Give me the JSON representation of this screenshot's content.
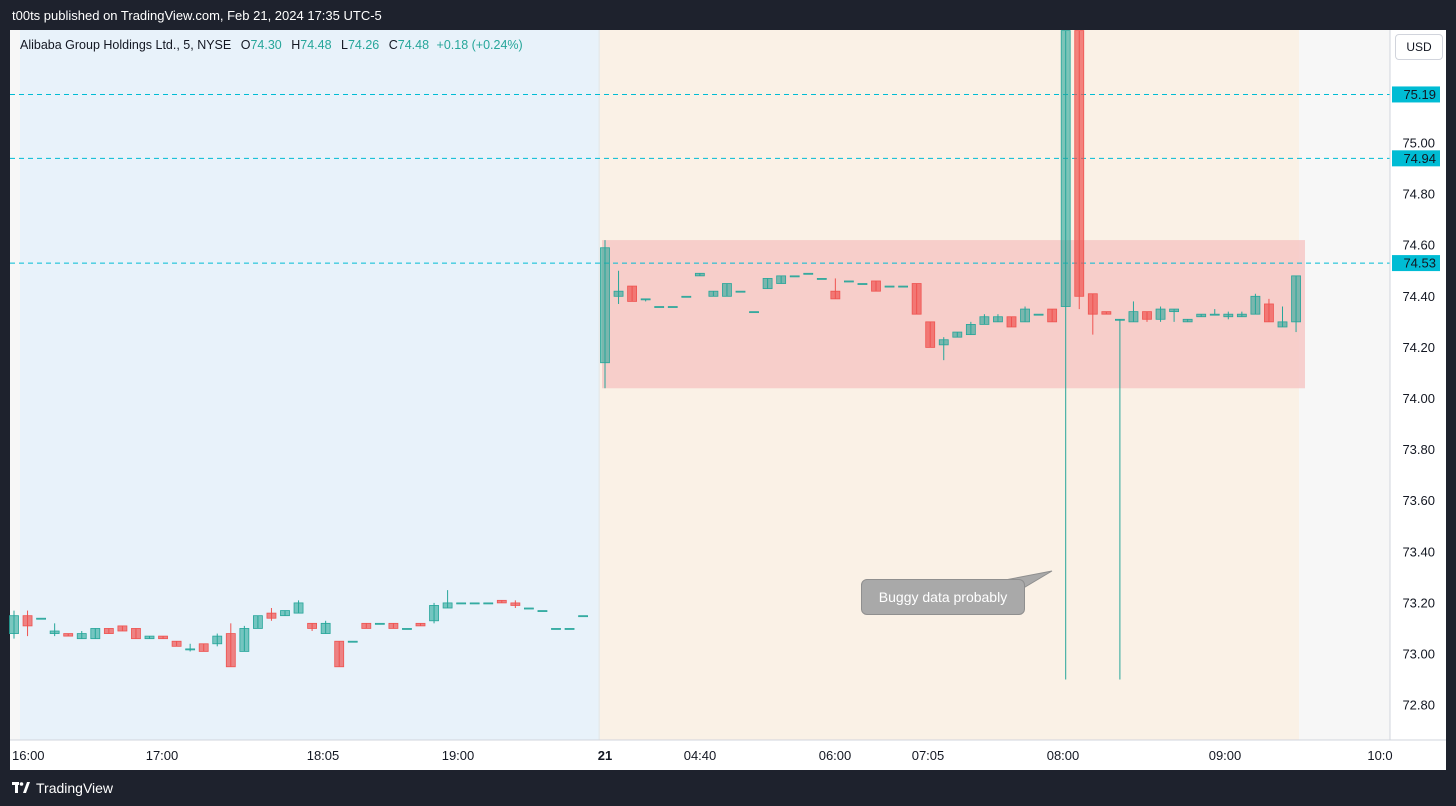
{
  "header": {
    "published": "t00ts published on TradingView.com, Feb 21, 2024 17:35 UTC-5"
  },
  "footer": {
    "brand": "TradingView"
  },
  "legend": {
    "symbol": "Alibaba Group Holdings Ltd., 5, NYSE",
    "o_label": "O",
    "o_value": "74.30",
    "h_label": "H",
    "h_value": "74.48",
    "l_label": "L",
    "l_value": "74.26",
    "c_label": "C",
    "c_value": "74.48",
    "change": "+0.18 (+0.24%)"
  },
  "currency_button": "USD",
  "annotation": {
    "text": "Buggy data probably"
  },
  "colors": {
    "up": "#26a69a",
    "down": "#ef5350",
    "line": "#00bcd4",
    "zone": "#f5c2c0",
    "pre_bg": "#e8f2fa",
    "post_bg": "#faf1e6"
  },
  "chart_data": {
    "type": "candlestick",
    "title": "Alibaba Group Holdings Ltd., 5, NYSE",
    "currency": "USD",
    "ylim": [
      72.67,
      75.44
    ],
    "y_ticks": [
      72.8,
      73.0,
      73.2,
      73.4,
      73.6,
      73.8,
      74.0,
      74.2,
      74.4,
      74.6,
      74.8,
      75.0
    ],
    "x_ticks": [
      "16:00",
      "17:00",
      "18:05",
      "19:00",
      "21",
      "04:40",
      "06:00",
      "07:05",
      "08:00",
      "09:00",
      "10:0"
    ],
    "horizontal_levels": [
      75.19,
      74.94,
      74.53
    ],
    "zone": {
      "top": 74.62,
      "bottom": 74.04
    },
    "sessions": {
      "after_hours_end": "21",
      "premarket_end": "09:30"
    },
    "candles": [
      {
        "o": 73.08,
        "h": 73.17,
        "l": 73.06,
        "c": 73.15
      },
      {
        "o": 73.15,
        "h": 73.17,
        "l": 73.07,
        "c": 73.11
      },
      {
        "o": 73.14,
        "h": 73.14,
        "l": 73.14,
        "c": 73.14
      },
      {
        "o": 73.08,
        "h": 73.12,
        "l": 73.07,
        "c": 73.09
      },
      {
        "o": 73.08,
        "h": 73.08,
        "l": 73.07,
        "c": 73.07
      },
      {
        "o": 73.06,
        "h": 73.09,
        "l": 73.06,
        "c": 73.08
      },
      {
        "o": 73.06,
        "h": 73.1,
        "l": 73.06,
        "c": 73.1
      },
      {
        "o": 73.1,
        "h": 73.1,
        "l": 73.08,
        "c": 73.08
      },
      {
        "o": 73.11,
        "h": 73.11,
        "l": 73.09,
        "c": 73.09
      },
      {
        "o": 73.1,
        "h": 73.1,
        "l": 73.06,
        "c": 73.06
      },
      {
        "o": 73.06,
        "h": 73.07,
        "l": 73.06,
        "c": 73.07
      },
      {
        "o": 73.07,
        "h": 73.07,
        "l": 73.06,
        "c": 73.06
      },
      {
        "o": 73.05,
        "h": 73.05,
        "l": 73.03,
        "c": 73.03
      },
      {
        "o": 73.02,
        "h": 73.04,
        "l": 73.01,
        "c": 73.02
      },
      {
        "o": 73.04,
        "h": 73.04,
        "l": 73.01,
        "c": 73.01
      },
      {
        "o": 73.04,
        "h": 73.08,
        "l": 73.03,
        "c": 73.07
      },
      {
        "o": 73.08,
        "h": 73.12,
        "l": 72.95,
        "c": 72.95
      },
      {
        "o": 73.01,
        "h": 73.11,
        "l": 73.01,
        "c": 73.1
      },
      {
        "o": 73.1,
        "h": 73.15,
        "l": 73.1,
        "c": 73.15
      },
      {
        "o": 73.16,
        "h": 73.18,
        "l": 73.13,
        "c": 73.14
      },
      {
        "o": 73.15,
        "h": 73.17,
        "l": 73.15,
        "c": 73.17
      },
      {
        "o": 73.16,
        "h": 73.21,
        "l": 73.16,
        "c": 73.2
      },
      {
        "o": 73.12,
        "h": 73.12,
        "l": 73.09,
        "c": 73.1
      },
      {
        "o": 73.08,
        "h": 73.13,
        "l": 73.08,
        "c": 73.12
      },
      {
        "o": 73.05,
        "h": 73.05,
        "l": 72.95,
        "c": 72.95
      },
      {
        "o": 73.05,
        "h": 73.05,
        "l": 73.05,
        "c": 73.05
      },
      {
        "o": 73.12,
        "h": 73.12,
        "l": 73.1,
        "c": 73.1
      },
      {
        "o": 73.12,
        "h": 73.12,
        "l": 73.12,
        "c": 73.12
      },
      {
        "o": 73.12,
        "h": 73.12,
        "l": 73.1,
        "c": 73.1
      },
      {
        "o": 73.1,
        "h": 73.1,
        "l": 73.1,
        "c": 73.1
      },
      {
        "o": 73.12,
        "h": 73.12,
        "l": 73.11,
        "c": 73.11
      },
      {
        "o": 73.13,
        "h": 73.2,
        "l": 73.12,
        "c": 73.19
      },
      {
        "o": 73.18,
        "h": 73.25,
        "l": 73.18,
        "c": 73.2
      },
      {
        "o": 73.2,
        "h": 73.2,
        "l": 73.2,
        "c": 73.2
      },
      {
        "o": 73.2,
        "h": 73.2,
        "l": 73.2,
        "c": 73.2
      },
      {
        "o": 73.2,
        "h": 73.2,
        "l": 73.2,
        "c": 73.2
      },
      {
        "o": 73.21,
        "h": 73.21,
        "l": 73.2,
        "c": 73.2
      },
      {
        "o": 73.2,
        "h": 73.21,
        "l": 73.18,
        "c": 73.19
      },
      {
        "o": 73.18,
        "h": 73.18,
        "l": 73.18,
        "c": 73.18
      },
      {
        "o": 73.17,
        "h": 73.17,
        "l": 73.17,
        "c": 73.17
      },
      {
        "o": 73.1,
        "h": 73.1,
        "l": 73.1,
        "c": 73.1
      },
      {
        "o": 73.1,
        "h": 73.1,
        "l": 73.1,
        "c": 73.1
      },
      {
        "o": 73.15,
        "h": 73.15,
        "l": 73.15,
        "c": 73.15
      },
      {
        "o": 74.14,
        "h": 74.62,
        "l": 74.04,
        "c": 74.59
      },
      {
        "o": 74.4,
        "h": 74.5,
        "l": 74.37,
        "c": 74.42
      },
      {
        "o": 74.44,
        "h": 74.44,
        "l": 74.38,
        "c": 74.38
      },
      {
        "o": 74.39,
        "h": 74.39,
        "l": 74.38,
        "c": 74.39
      },
      {
        "o": 74.36,
        "h": 74.36,
        "l": 74.36,
        "c": 74.36
      },
      {
        "o": 74.36,
        "h": 74.36,
        "l": 74.36,
        "c": 74.36
      },
      {
        "o": 74.4,
        "h": 74.4,
        "l": 74.4,
        "c": 74.4
      },
      {
        "o": 74.48,
        "h": 74.49,
        "l": 74.48,
        "c": 74.49
      },
      {
        "o": 74.4,
        "h": 74.42,
        "l": 74.4,
        "c": 74.42
      },
      {
        "o": 74.4,
        "h": 74.45,
        "l": 74.4,
        "c": 74.45
      },
      {
        "o": 74.42,
        "h": 74.42,
        "l": 74.42,
        "c": 74.42
      },
      {
        "o": 74.34,
        "h": 74.34,
        "l": 74.34,
        "c": 74.34
      },
      {
        "o": 74.43,
        "h": 74.47,
        "l": 74.43,
        "c": 74.47
      },
      {
        "o": 74.45,
        "h": 74.48,
        "l": 74.45,
        "c": 74.48
      },
      {
        "o": 74.48,
        "h": 74.48,
        "l": 74.48,
        "c": 74.48
      },
      {
        "o": 74.49,
        "h": 74.49,
        "l": 74.49,
        "c": 74.49
      },
      {
        "o": 74.47,
        "h": 74.47,
        "l": 74.47,
        "c": 74.47
      },
      {
        "o": 74.42,
        "h": 74.47,
        "l": 74.39,
        "c": 74.39
      },
      {
        "o": 74.46,
        "h": 74.46,
        "l": 74.46,
        "c": 74.46
      },
      {
        "o": 74.45,
        "h": 74.45,
        "l": 74.45,
        "c": 74.45
      },
      {
        "o": 74.46,
        "h": 74.46,
        "l": 74.42,
        "c": 74.42
      },
      {
        "o": 74.44,
        "h": 74.44,
        "l": 74.44,
        "c": 74.44
      },
      {
        "o": 74.44,
        "h": 74.44,
        "l": 74.44,
        "c": 74.44
      },
      {
        "o": 74.45,
        "h": 74.45,
        "l": 74.33,
        "c": 74.33
      },
      {
        "o": 74.3,
        "h": 74.3,
        "l": 74.2,
        "c": 74.2
      },
      {
        "o": 74.21,
        "h": 74.24,
        "l": 74.15,
        "c": 74.23
      },
      {
        "o": 74.24,
        "h": 74.26,
        "l": 74.24,
        "c": 74.26
      },
      {
        "o": 74.25,
        "h": 74.3,
        "l": 74.25,
        "c": 74.29
      },
      {
        "o": 74.29,
        "h": 74.33,
        "l": 74.29,
        "c": 74.32
      },
      {
        "o": 74.3,
        "h": 74.33,
        "l": 74.3,
        "c": 74.32
      },
      {
        "o": 74.32,
        "h": 74.32,
        "l": 74.28,
        "c": 74.28
      },
      {
        "o": 74.3,
        "h": 74.36,
        "l": 74.3,
        "c": 74.35
      },
      {
        "o": 74.33,
        "h": 74.33,
        "l": 74.33,
        "c": 74.33
      },
      {
        "o": 74.35,
        "h": 74.35,
        "l": 74.3,
        "c": 74.3
      },
      {
        "o": 74.36,
        "h": 75.44,
        "l": 72.9,
        "c": 75.44
      },
      {
        "o": 75.44,
        "h": 75.44,
        "l": 74.35,
        "c": 74.4
      },
      {
        "o": 74.41,
        "h": 74.41,
        "l": 74.25,
        "c": 74.33
      },
      {
        "o": 74.34,
        "h": 74.34,
        "l": 74.33,
        "c": 74.33
      },
      {
        "o": 74.31,
        "h": 74.31,
        "l": 72.9,
        "c": 74.31
      },
      {
        "o": 74.3,
        "h": 74.38,
        "l": 74.3,
        "c": 74.34
      },
      {
        "o": 74.34,
        "h": 74.34,
        "l": 74.3,
        "c": 74.31
      },
      {
        "o": 74.31,
        "h": 74.36,
        "l": 74.3,
        "c": 74.35
      },
      {
        "o": 74.34,
        "h": 74.35,
        "l": 74.3,
        "c": 74.35
      },
      {
        "o": 74.3,
        "h": 74.31,
        "l": 74.3,
        "c": 74.31
      },
      {
        "o": 74.32,
        "h": 74.33,
        "l": 74.32,
        "c": 74.33
      },
      {
        "o": 74.33,
        "h": 74.35,
        "l": 74.33,
        "c": 74.33
      },
      {
        "o": 74.32,
        "h": 74.34,
        "l": 74.31,
        "c": 74.33
      },
      {
        "o": 74.32,
        "h": 74.34,
        "l": 74.32,
        "c": 74.33
      },
      {
        "o": 74.33,
        "h": 74.41,
        "l": 74.33,
        "c": 74.4
      },
      {
        "o": 74.37,
        "h": 74.39,
        "l": 74.3,
        "c": 74.3
      },
      {
        "o": 74.28,
        "h": 74.36,
        "l": 74.28,
        "c": 74.3
      },
      {
        "o": 74.3,
        "h": 74.48,
        "l": 74.26,
        "c": 74.48
      }
    ]
  }
}
